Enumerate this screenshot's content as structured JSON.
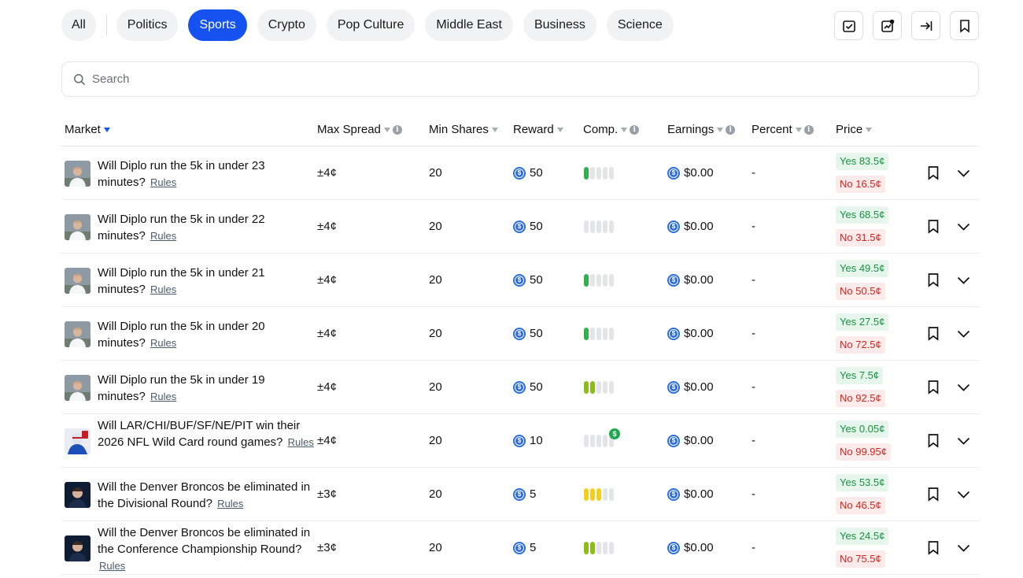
{
  "categories": [
    {
      "label": "All",
      "active": false
    },
    {
      "label": "Politics",
      "active": false
    },
    {
      "label": "Sports",
      "active": true
    },
    {
      "label": "Crypto",
      "active": false
    },
    {
      "label": "Pop Culture",
      "active": false
    },
    {
      "label": "Middle East",
      "active": false
    },
    {
      "label": "Business",
      "active": false
    },
    {
      "label": "Science",
      "active": false
    }
  ],
  "toolbar": {
    "icons": [
      "checklist-icon",
      "reward-chart-icon",
      "log-in-icon",
      "bookmark-icon"
    ]
  },
  "search": {
    "placeholder": "Search",
    "value": ""
  },
  "columns": {
    "market": "Market",
    "max_spread": "Max Spread",
    "min_shares": "Min Shares",
    "reward": "Reward",
    "comp": "Comp.",
    "earnings": "Earnings",
    "percent": "Percent",
    "price": "Price"
  },
  "colors": {
    "accent": "#1652f0",
    "coin": "#2d6cdf",
    "yes_text": "#14943c",
    "no_text": "#d9241c",
    "comp_green": "#2fb14c",
    "comp_lime": "#8bbd1a",
    "comp_yellow": "#f2cf1e"
  },
  "rows": [
    {
      "market": "Will Diplo run the 5k in under 23 minutes?",
      "rules": "Rules",
      "avatar": "diplo",
      "spread": "±4¢",
      "min_shares": "20",
      "reward": "50",
      "comp_level": 1,
      "comp_color": "green",
      "earnings": "$0.00",
      "percent": "-",
      "yes": "Yes 83.5¢",
      "no": "No 16.5¢"
    },
    {
      "market": "Will Diplo run the 5k in under 22 minutes?",
      "rules": "Rules",
      "avatar": "diplo",
      "spread": "±4¢",
      "min_shares": "20",
      "reward": "50",
      "comp_level": 0,
      "comp_color": "green",
      "earnings": "$0.00",
      "percent": "-",
      "yes": "Yes 68.5¢",
      "no": "No 31.5¢"
    },
    {
      "market": "Will Diplo run the 5k in under 21 minutes?",
      "rules": "Rules",
      "avatar": "diplo",
      "spread": "±4¢",
      "min_shares": "20",
      "reward": "50",
      "comp_level": 1,
      "comp_color": "green",
      "earnings": "$0.00",
      "percent": "-",
      "yes": "Yes 49.5¢",
      "no": "No 50.5¢"
    },
    {
      "market": "Will Diplo run the 5k in under 20 minutes?",
      "rules": "Rules",
      "avatar": "diplo",
      "spread": "±4¢",
      "min_shares": "20",
      "reward": "50",
      "comp_level": 1,
      "comp_color": "green",
      "earnings": "$0.00",
      "percent": "-",
      "yes": "Yes 27.5¢",
      "no": "No 72.5¢"
    },
    {
      "market": "Will Diplo run the 5k in under 19 minutes?",
      "rules": "Rules",
      "avatar": "diplo",
      "spread": "±4¢",
      "min_shares": "20",
      "reward": "50",
      "comp_level": 2,
      "comp_color": "lime",
      "earnings": "$0.00",
      "percent": "-",
      "yes": "Yes 7.5¢",
      "no": "No 92.5¢"
    },
    {
      "market": "Will LAR/CHI/BUF/SF/NE/PIT win their 2026 NFL Wild Card round games?",
      "rules": "Rules",
      "avatar": "nfl",
      "spread": "±4¢",
      "min_shares": "20",
      "reward": "10",
      "comp_level": 0,
      "comp_color": "green",
      "badge": "$",
      "earnings": "$0.00",
      "percent": "-",
      "yes": "Yes 0.05¢",
      "no": "No 99.95¢"
    },
    {
      "market": "Will the Denver Broncos be eliminated in the Divisional Round?",
      "rules": "Rules",
      "avatar": "broncos",
      "spread": "±3¢",
      "min_shares": "20",
      "reward": "5",
      "comp_level": 3,
      "comp_color": "yellow",
      "earnings": "$0.00",
      "percent": "-",
      "yes": "Yes 53.5¢",
      "no": "No 46.5¢"
    },
    {
      "market": "Will the Denver Broncos be eliminated in the Conference Championship Round?",
      "rules": "Rules",
      "avatar": "broncos",
      "spread": "±3¢",
      "min_shares": "20",
      "reward": "5",
      "comp_level": 2,
      "comp_color": "lime",
      "earnings": "$0.00",
      "percent": "-",
      "yes": "Yes 24.5¢",
      "no": "No 75.5¢"
    }
  ]
}
